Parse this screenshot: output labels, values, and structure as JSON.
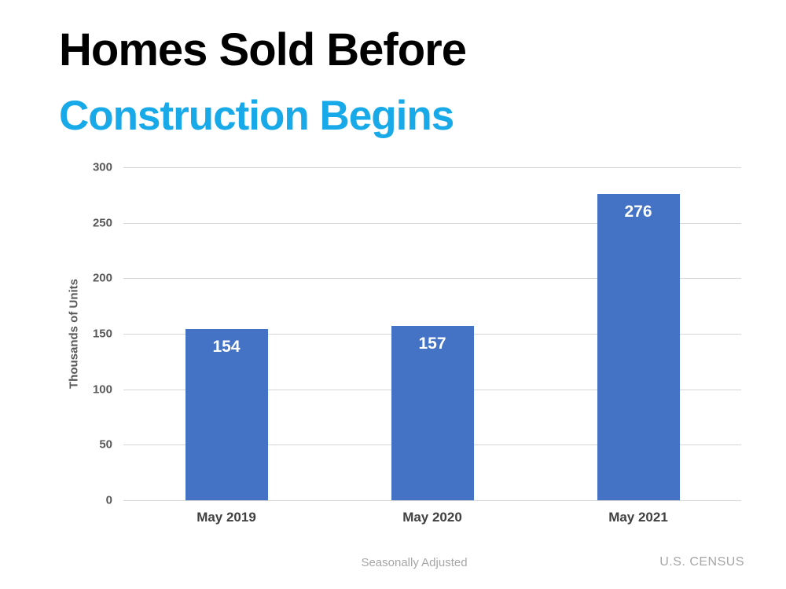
{
  "slide": {
    "title_line1": "Homes Sold Before",
    "title_line2": "Construction Begins",
    "title_line1_color": "#000000",
    "title_line2_color": "#18A9E9"
  },
  "chart_data": {
    "type": "bar",
    "title": "Homes Sold Before Construction Begins",
    "categories": [
      "May 2019",
      "May 2020",
      "May 2021"
    ],
    "values": [
      154,
      157,
      276
    ],
    "bar_labels": [
      "154",
      "157",
      "276"
    ],
    "xlabel": "",
    "ylabel": "Thousands of Units",
    "ylim": [
      0,
      300
    ],
    "yticks": [
      0,
      50,
      100,
      150,
      200,
      250,
      300
    ],
    "grid": true,
    "legend": false,
    "bar_color": "#4472C4",
    "bar_label_color": "#FFFFFF",
    "gridline_color": "#D6D6D6",
    "ytick_color": "#595959",
    "axis_title_color": "#595959",
    "category_label_color": "#404040"
  },
  "footer": {
    "note": "Seasonally Adjusted",
    "source": "U.S. CENSUS",
    "color": "#A6A6A6"
  }
}
